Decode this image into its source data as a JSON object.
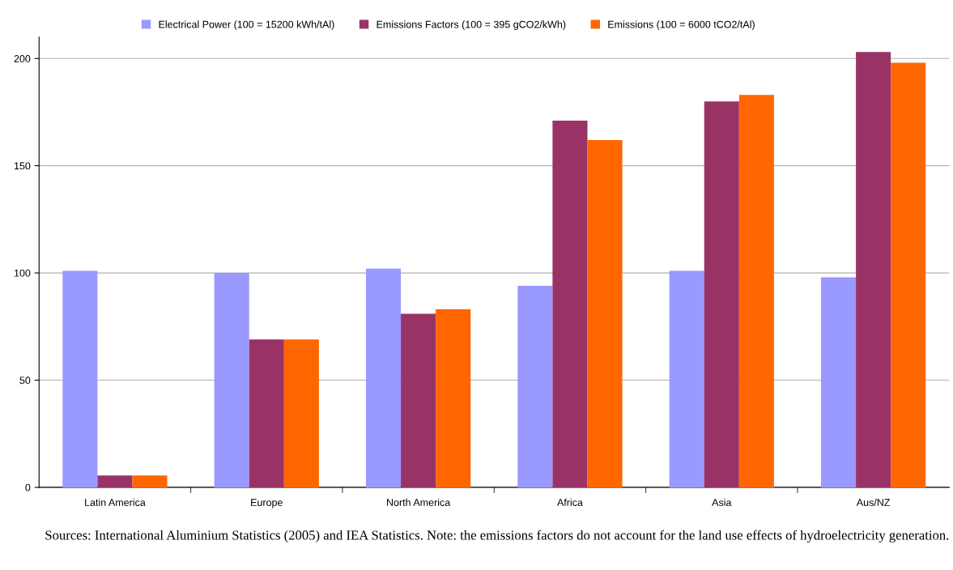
{
  "chart_data": {
    "type": "bar",
    "categories": [
      "Latin America",
      "Europe",
      "North America",
      "Africa",
      "Asia",
      "Aus/NZ"
    ],
    "series": [
      {
        "name": "Electrical Power (100 = 15200 kWh/tAl)",
        "color": "#9999ff",
        "values": [
          101,
          100,
          102,
          94,
          101,
          98
        ]
      },
      {
        "name": "Emissions Factors (100 = 395 gCO2/kWh)",
        "color": "#993366",
        "values": [
          5.5,
          69,
          81,
          171,
          180,
          203
        ]
      },
      {
        "name": "Emissions (100 = 6000 tCO2/tAl)",
        "color": "#ff6600",
        "values": [
          5.5,
          69,
          83,
          162,
          183,
          198
        ]
      }
    ],
    "ylim": [
      0,
      210
    ],
    "yticks": [
      0,
      50,
      100,
      150,
      200
    ],
    "grid": "y",
    "legend": "top",
    "annotations": [
      "Sources: International Aluminium Statistics (2005) and IEA Statistics. Note: the emissions factors do not account for the land use effects of hydroelectricity generation."
    ]
  }
}
